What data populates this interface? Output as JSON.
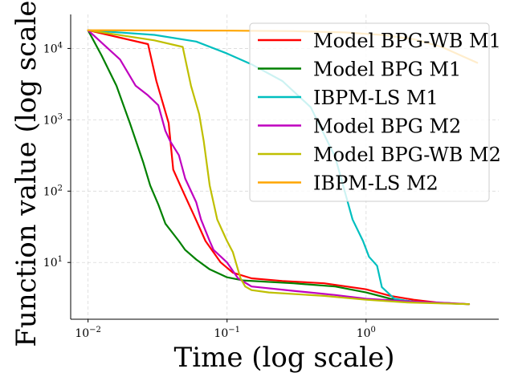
{
  "chart_data": {
    "type": "line",
    "title": "",
    "xlabel": "Time (log scale)",
    "ylabel": "Function value (log scale)",
    "xscale": "log",
    "yscale": "log",
    "xlim": [
      0.0075,
      9.0
    ],
    "ylim": [
      1.6,
      30000
    ],
    "xticks": [
      {
        "value": 0.01,
        "base": "10",
        "exp": "−2"
      },
      {
        "value": 0.1,
        "base": "10",
        "exp": "−1"
      },
      {
        "value": 1,
        "base": "10",
        "exp": "0"
      }
    ],
    "yticks": [
      {
        "value": 10,
        "base": "10",
        "exp": "1"
      },
      {
        "value": 100,
        "base": "10",
        "exp": "2"
      },
      {
        "value": 1000,
        "base": "10",
        "exp": "3"
      },
      {
        "value": 10000,
        "base": "10",
        "exp": "4"
      }
    ],
    "grid": true,
    "legend_position": "top-right",
    "series": [
      {
        "name": "Model BPG-WB M1",
        "color": "#ff0000",
        "points": [
          [
            0.01,
            18000
          ],
          [
            0.027,
            11500
          ],
          [
            0.031,
            3500
          ],
          [
            0.038,
            900
          ],
          [
            0.041,
            200
          ],
          [
            0.047,
            110
          ],
          [
            0.058,
            45
          ],
          [
            0.07,
            20
          ],
          [
            0.09,
            10
          ],
          [
            0.11,
            7.2
          ],
          [
            0.15,
            6.0
          ],
          [
            0.25,
            5.5
          ],
          [
            0.5,
            5.1
          ],
          [
            1.0,
            4.2
          ],
          [
            1.5,
            3.4
          ],
          [
            2.2,
            3.0
          ],
          [
            3.5,
            2.7
          ],
          [
            5.5,
            2.6
          ]
        ]
      },
      {
        "name": "Model BPG M1",
        "color": "#008000",
        "points": [
          [
            0.01,
            18000
          ],
          [
            0.0125,
            8000
          ],
          [
            0.016,
            3000
          ],
          [
            0.02,
            900
          ],
          [
            0.025,
            250
          ],
          [
            0.028,
            120
          ],
          [
            0.032,
            65
          ],
          [
            0.036,
            35
          ],
          [
            0.045,
            20
          ],
          [
            0.05,
            15
          ],
          [
            0.06,
            11
          ],
          [
            0.075,
            8
          ],
          [
            0.1,
            6.2
          ],
          [
            0.13,
            5.6
          ],
          [
            0.3,
            5.1
          ],
          [
            0.6,
            4.6
          ],
          [
            1.0,
            3.8
          ],
          [
            1.5,
            3.1
          ],
          [
            2.5,
            2.75
          ],
          [
            5.5,
            2.6
          ]
        ]
      },
      {
        "name": "IBPM-LS M1",
        "color": "#00bfbf",
        "points": [
          [
            0.01,
            18000
          ],
          [
            0.03,
            15500
          ],
          [
            0.06,
            12500
          ],
          [
            0.1,
            8500
          ],
          [
            0.15,
            6000
          ],
          [
            0.25,
            3500
          ],
          [
            0.4,
            1500
          ],
          [
            0.6,
            300
          ],
          [
            0.8,
            40
          ],
          [
            0.95,
            20
          ],
          [
            1.05,
            12
          ],
          [
            1.2,
            9
          ],
          [
            1.3,
            4.5
          ],
          [
            1.6,
            3.1
          ],
          [
            2.2,
            2.8
          ],
          [
            4.0,
            2.7
          ]
        ]
      },
      {
        "name": "Model BPG M2",
        "color": "#bf00bf",
        "points": [
          [
            0.01,
            18000
          ],
          [
            0.017,
            7000
          ],
          [
            0.022,
            3000
          ],
          [
            0.027,
            2200
          ],
          [
            0.032,
            1600
          ],
          [
            0.036,
            700
          ],
          [
            0.039,
            500
          ],
          [
            0.045,
            320
          ],
          [
            0.05,
            150
          ],
          [
            0.06,
            70
          ],
          [
            0.065,
            40
          ],
          [
            0.075,
            20
          ],
          [
            0.08,
            15
          ],
          [
            0.1,
            10
          ],
          [
            0.12,
            6
          ],
          [
            0.15,
            4.6
          ],
          [
            0.3,
            4.0
          ],
          [
            0.6,
            3.5
          ],
          [
            1.0,
            3.1
          ],
          [
            2.0,
            2.85
          ],
          [
            4.0,
            2.7
          ],
          [
            5.5,
            2.6
          ]
        ]
      },
      {
        "name": "Model BPG-WB M2",
        "color": "#bfbf00",
        "points": [
          [
            0.01,
            18000
          ],
          [
            0.03,
            13000
          ],
          [
            0.048,
            10500
          ],
          [
            0.055,
            3000
          ],
          [
            0.063,
            1200
          ],
          [
            0.068,
            500
          ],
          [
            0.075,
            120
          ],
          [
            0.085,
            40
          ],
          [
            0.1,
            20
          ],
          [
            0.11,
            14
          ],
          [
            0.125,
            6
          ],
          [
            0.135,
            4.6
          ],
          [
            0.15,
            4.1
          ],
          [
            0.2,
            3.8
          ],
          [
            0.5,
            3.4
          ],
          [
            1.0,
            3.0
          ],
          [
            2.0,
            2.75
          ],
          [
            5.5,
            2.6
          ]
        ]
      },
      {
        "name": "IBPM-LS M2",
        "color": "#ffa500",
        "points": [
          [
            0.01,
            18000
          ],
          [
            0.1,
            17800
          ],
          [
            0.3,
            17500
          ],
          [
            0.7,
            16800
          ],
          [
            1.3,
            15500
          ],
          [
            2.2,
            13500
          ],
          [
            3.5,
            10500
          ],
          [
            5.0,
            7700
          ],
          [
            6.3,
            6300
          ]
        ]
      }
    ]
  }
}
